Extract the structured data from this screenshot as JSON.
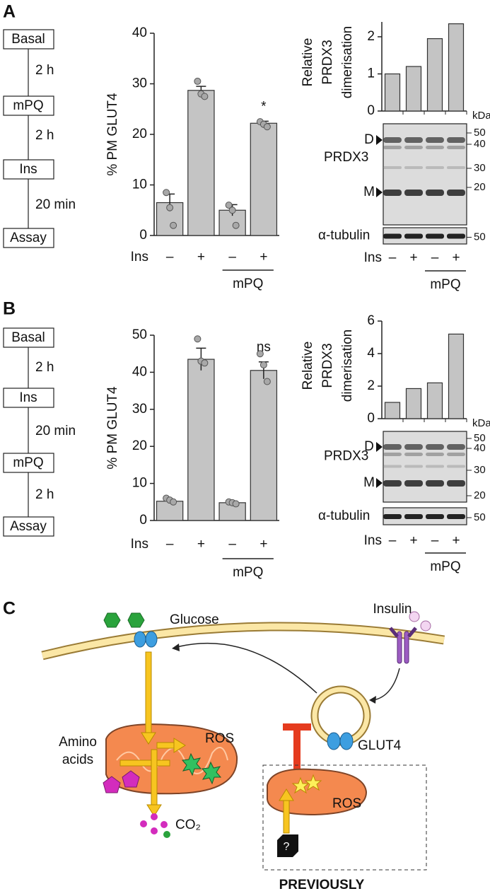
{
  "panels": [
    {
      "label": "A",
      "flow": [
        "Basal",
        "2 h",
        "mPQ",
        "2 h",
        "Ins",
        "20 min",
        "Assay"
      ],
      "glut4": {
        "type": "bar",
        "ylabel": "% PM GLUT4",
        "ylim": [
          0,
          40
        ],
        "yticks": [
          0,
          10,
          20,
          30,
          40
        ],
        "categories": [
          "–",
          "+",
          "–",
          "+"
        ],
        "values": [
          6.5,
          28.7,
          5,
          22.2
        ],
        "errors": [
          1.7,
          0.8,
          1.1,
          0.4
        ],
        "points": [
          [
            8.5,
            5.5,
            2
          ],
          [
            30.5,
            28,
            27.5
          ],
          [
            6,
            5,
            2
          ],
          [
            22.5,
            22,
            21.5
          ]
        ],
        "annotations": [
          null,
          null,
          null,
          "*"
        ],
        "x_label": "Ins",
        "group_label": "mPQ",
        "color": "#c4c4c4"
      },
      "dimer": {
        "type": "bar",
        "ylabel": [
          "Relative",
          "PRDX3",
          "dimerisation"
        ],
        "ylim": [
          0,
          2.4
        ],
        "yticks": [
          0,
          1,
          2
        ],
        "values": [
          1.0,
          1.2,
          1.95,
          2.35
        ],
        "color": "#c4c4c4"
      },
      "blot": {
        "unit": "kDa",
        "bands": [
          "D",
          "M"
        ],
        "protein": "PRDX3",
        "loading": "α-tubulin",
        "markers": [
          50,
          40,
          30,
          20
        ],
        "loading_marker": 50,
        "categories": [
          "–",
          "+",
          "–",
          "+"
        ],
        "x_label": "Ins",
        "group_label": "mPQ"
      }
    },
    {
      "label": "B",
      "flow": [
        "Basal",
        "2 h",
        "Ins",
        "20 min",
        "mPQ",
        "2 h",
        "Assay"
      ],
      "glut4": {
        "type": "bar",
        "ylabel": "% PM GLUT4",
        "ylim": [
          0,
          50
        ],
        "yticks": [
          0,
          10,
          20,
          30,
          40,
          50
        ],
        "categories": [
          "–",
          "+",
          "–",
          "+"
        ],
        "values": [
          5.2,
          43.5,
          4.8,
          40.5
        ],
        "errors": [
          0.5,
          3,
          0.3,
          2.3
        ],
        "points": [
          [
            6,
            5.5,
            5
          ],
          [
            49,
            43,
            42.5
          ],
          [
            5,
            4.8,
            4.5
          ],
          [
            45,
            42,
            37.5
          ]
        ],
        "annotations": [
          null,
          null,
          null,
          "ns"
        ],
        "x_label": "Ins",
        "group_label": "mPQ",
        "color": "#c4c4c4"
      },
      "dimer": {
        "type": "bar",
        "ylabel": [
          "Relative",
          "PRDX3",
          "dimerisation"
        ],
        "ylim": [
          0,
          6
        ],
        "yticks": [
          0,
          2,
          4,
          6
        ],
        "values": [
          1.0,
          1.85,
          2.2,
          5.2
        ],
        "color": "#c4c4c4"
      },
      "blot": {
        "unit": "kDa",
        "bands": [
          "D",
          "M"
        ],
        "protein": "PRDX3",
        "loading": "α-tubulin",
        "markers": [
          50,
          40,
          30,
          20
        ],
        "loading_marker": 50,
        "categories": [
          "–",
          "+",
          "–",
          "+"
        ],
        "x_label": "Ins",
        "group_label": "mPQ"
      }
    }
  ],
  "diagram": {
    "label": "C",
    "glucose": "Glucose",
    "insulin": "Insulin",
    "glut4": "GLUT4",
    "amino_acids": [
      "Amino",
      "acids"
    ],
    "ros": "ROS",
    "co2": "CO₂",
    "ros_previous": "ROS",
    "unknown": "?",
    "previously": "PREVIOUSLY"
  }
}
